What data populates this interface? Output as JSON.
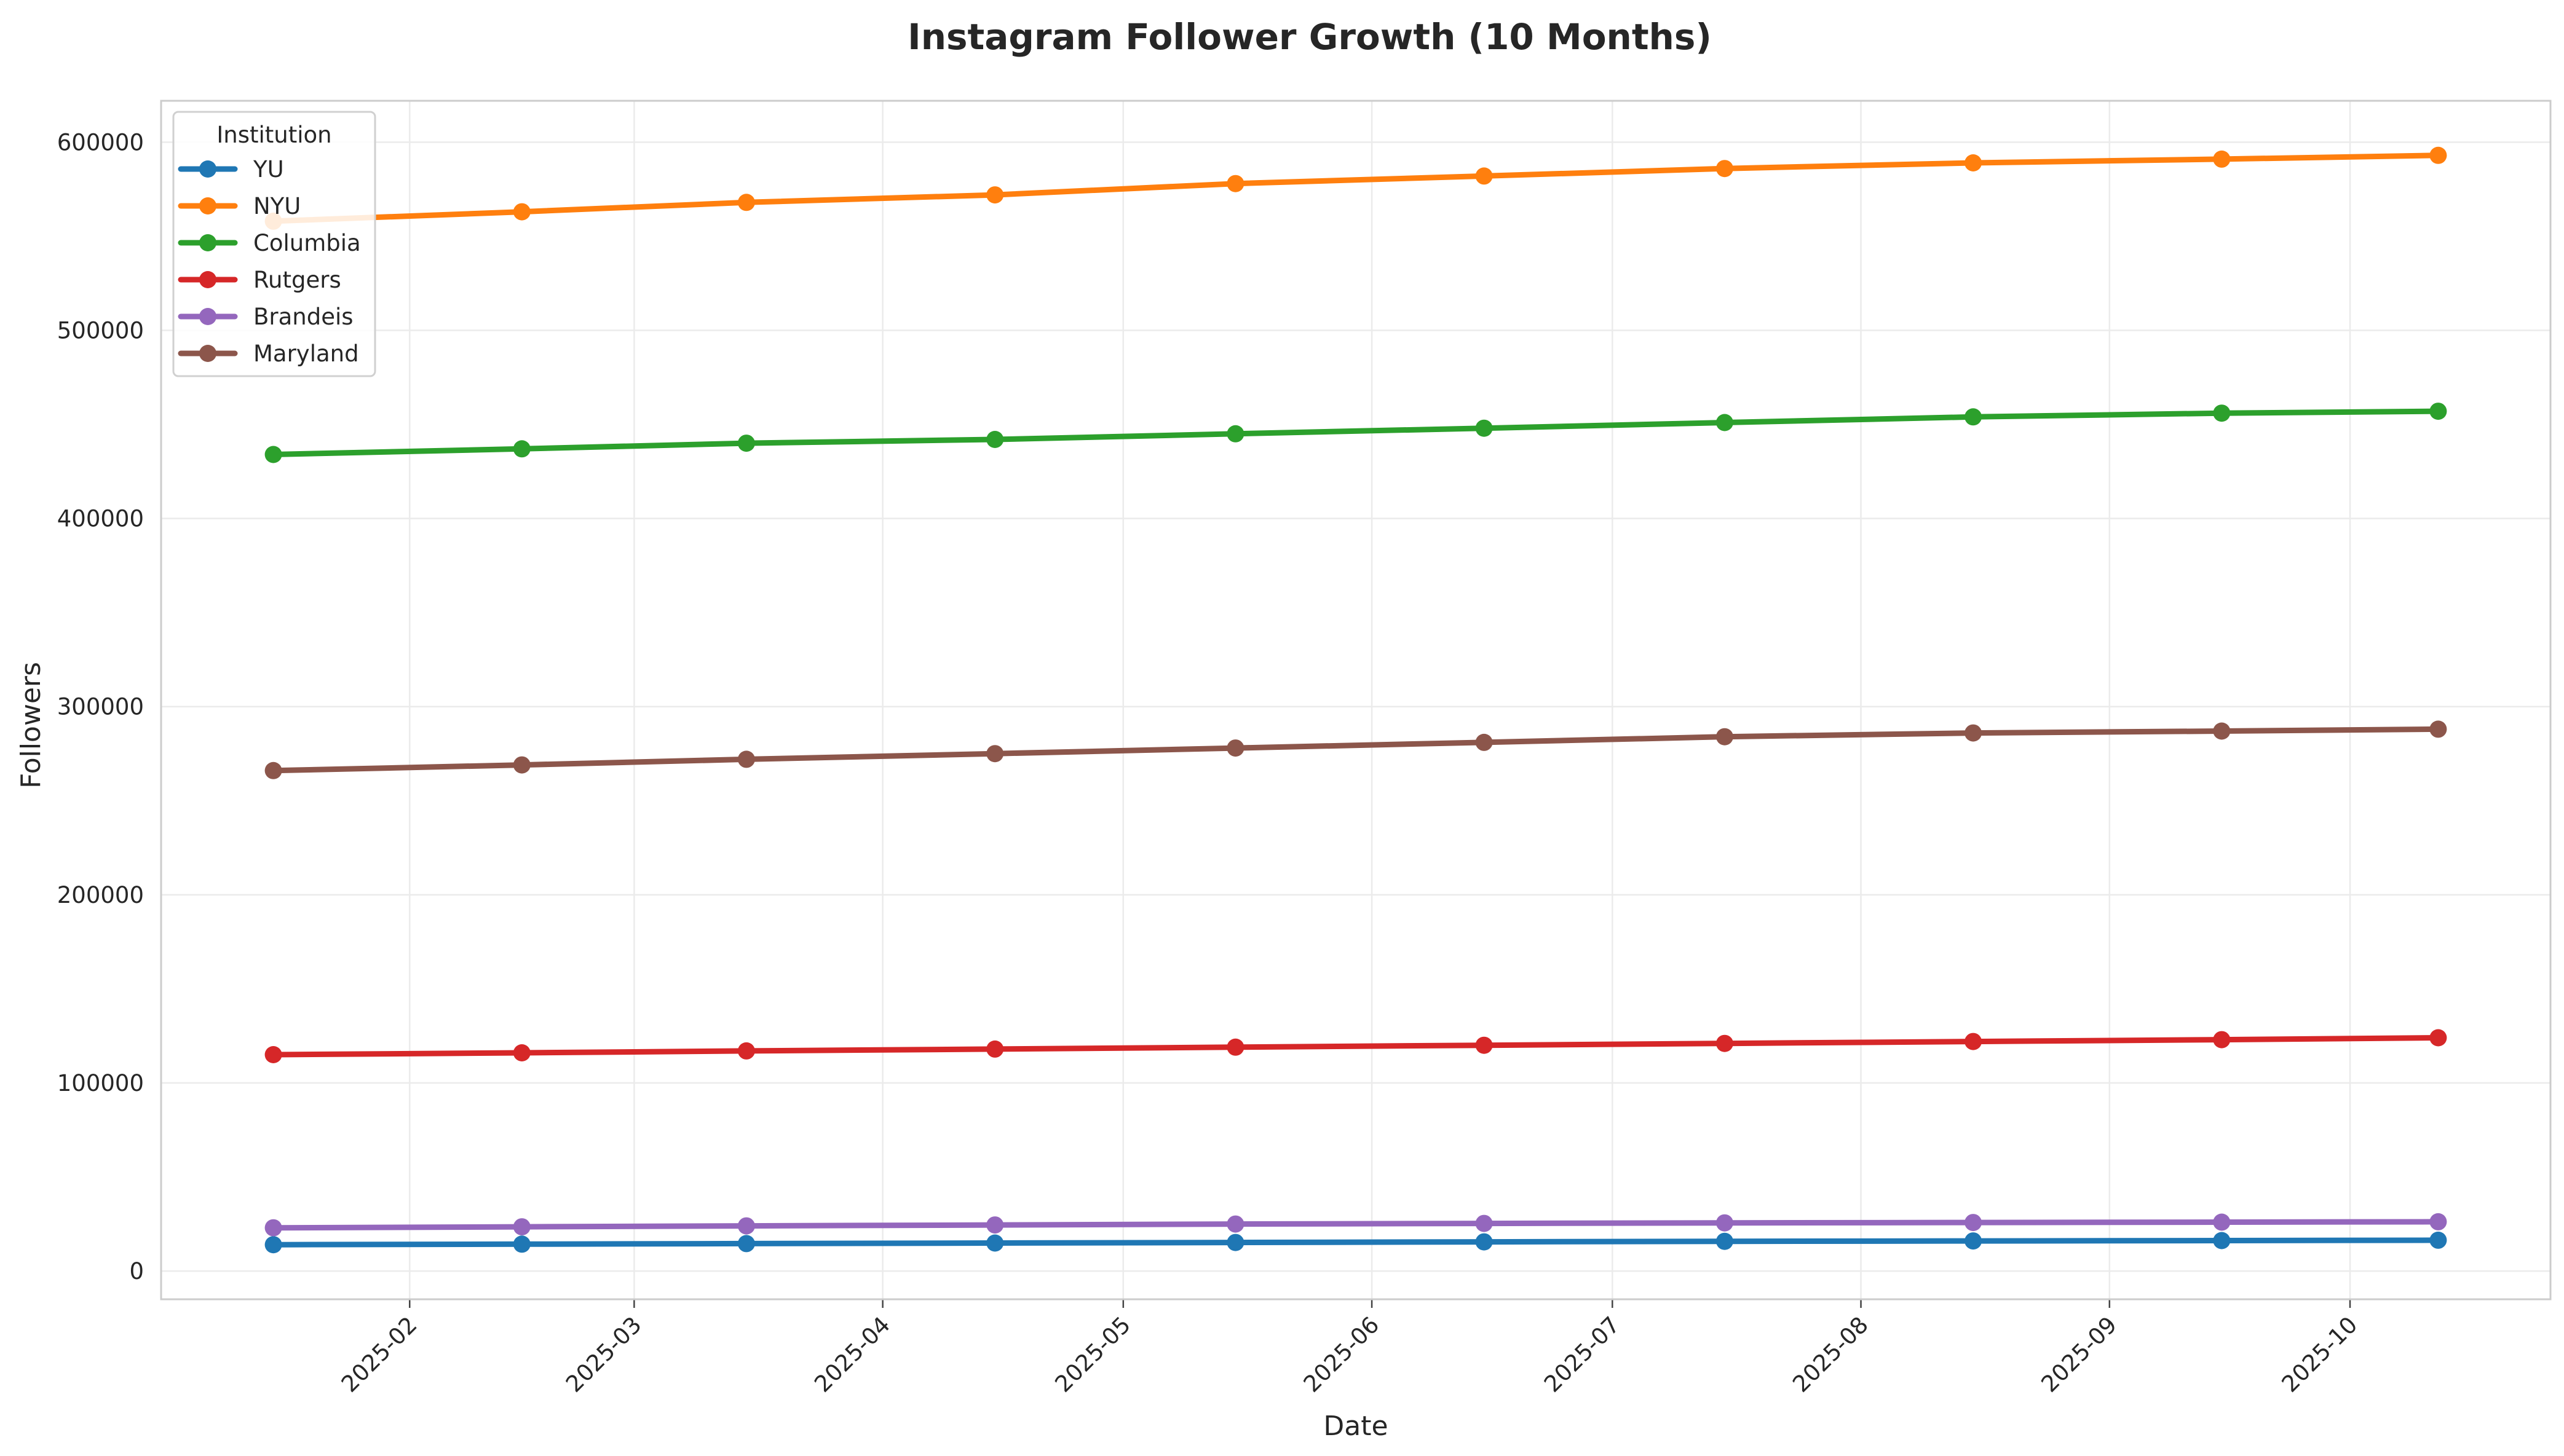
{
  "chart_data": {
    "type": "line",
    "title": "Instagram Follower Growth (10 Months)",
    "xlabel": "Date",
    "ylabel": "Followers",
    "x": [
      "2025-01-15",
      "2025-02-15",
      "2025-03-15",
      "2025-04-15",
      "2025-05-15",
      "2025-06-15",
      "2025-07-15",
      "2025-08-15",
      "2025-09-15",
      "2025-10-12"
    ],
    "xlim": [
      "2025-01-01",
      "2025-10-26"
    ],
    "ylim": [
      -15000,
      622000
    ],
    "x_ticks": [
      "2025-02-01",
      "2025-03-01",
      "2025-04-01",
      "2025-05-01",
      "2025-06-01",
      "2025-07-01",
      "2025-08-01",
      "2025-09-01",
      "2025-10-01"
    ],
    "x_tick_labels": [
      "2025-02",
      "2025-03",
      "2025-04",
      "2025-05",
      "2025-06",
      "2025-07",
      "2025-08",
      "2025-09",
      "2025-10"
    ],
    "y_ticks": [
      0,
      100000,
      200000,
      300000,
      400000,
      500000,
      600000
    ],
    "y_tick_labels": [
      "0",
      "100000",
      "200000",
      "300000",
      "400000",
      "500000",
      "600000"
    ],
    "grid": true,
    "legend_title": "Institution",
    "legend_position": "top-left",
    "series": [
      {
        "name": "YU",
        "color": "#1f77b4",
        "values": [
          14000,
          14300,
          14600,
          14900,
          15200,
          15500,
          15800,
          16000,
          16200,
          16400
        ]
      },
      {
        "name": "NYU",
        "color": "#ff7f0e",
        "values": [
          558000,
          563000,
          568000,
          572000,
          578000,
          582000,
          586000,
          589000,
          591000,
          593000
        ]
      },
      {
        "name": "Columbia",
        "color": "#2ca02c",
        "values": [
          434000,
          437000,
          440000,
          442000,
          445000,
          448000,
          451000,
          454000,
          456000,
          457000
        ]
      },
      {
        "name": "Rutgers",
        "color": "#d62728",
        "values": [
          115000,
          116000,
          117000,
          118000,
          119000,
          120000,
          121000,
          122000,
          123000,
          124000
        ]
      },
      {
        "name": "Brandeis",
        "color": "#9467bd",
        "values": [
          23000,
          23500,
          24000,
          24500,
          25000,
          25300,
          25600,
          25800,
          26000,
          26200
        ]
      },
      {
        "name": "Maryland",
        "color": "#8c564b",
        "values": [
          266000,
          269000,
          272000,
          275000,
          278000,
          281000,
          284000,
          286000,
          287000,
          288000
        ]
      }
    ]
  }
}
